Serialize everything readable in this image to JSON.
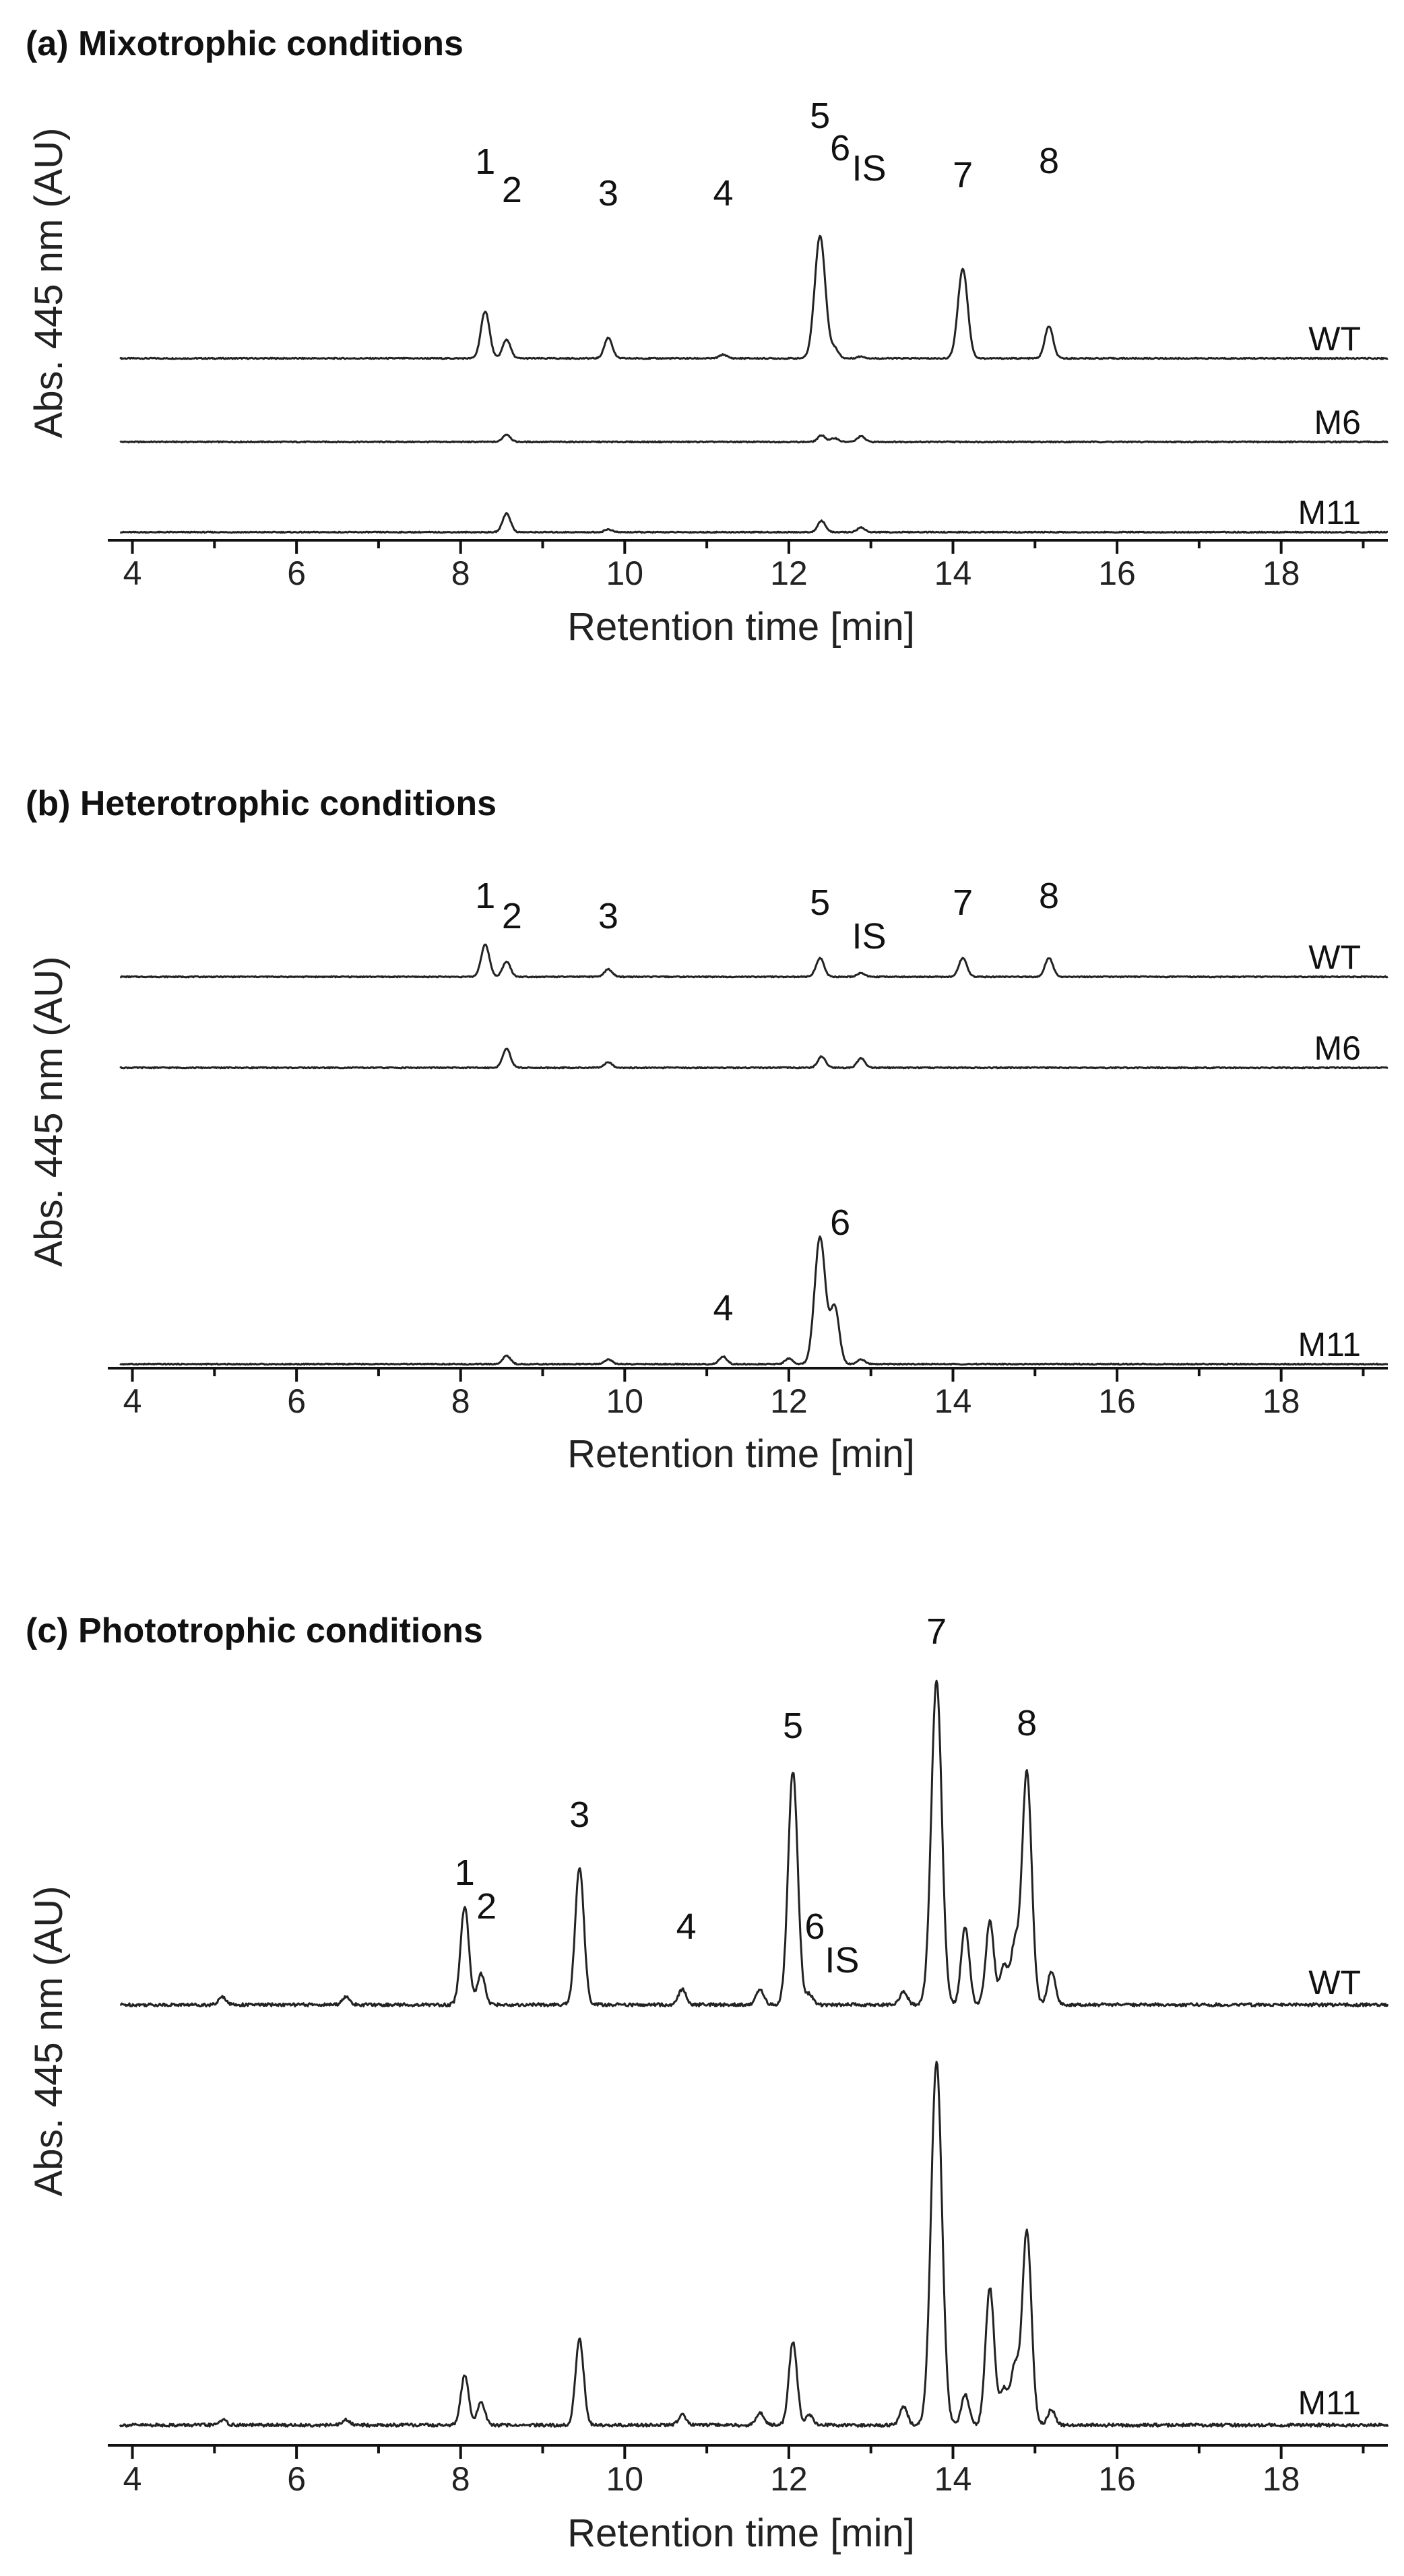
{
  "chart_data": [
    {
      "type": "line",
      "title": "(a) Mixotrophic conditions",
      "xlabel": "Retention time [min]",
      "ylabel": "Abs. 445 nm  (AU)",
      "xlim": [
        3.7,
        19.3
      ],
      "xticks": [
        "4",
        "6",
        "8",
        "10",
        "12",
        "14",
        "16",
        "18"
      ],
      "series": [
        {
          "name": "WT",
          "peaks": [
            [
              8.3,
              0.5
            ],
            [
              8.56,
              0.2
            ],
            [
              9.8,
              0.22
            ],
            [
              11.2,
              0.04
            ],
            [
              12.38,
              1.3
            ],
            [
              12.56,
              0.1
            ],
            [
              12.88,
              0.02
            ],
            [
              14.12,
              0.95
            ],
            [
              15.17,
              0.34
            ]
          ]
        },
        {
          "name": "M6",
          "peaks": [
            [
              8.56,
              0.08
            ],
            [
              12.4,
              0.07
            ],
            [
              12.56,
              0.04
            ],
            [
              12.88,
              0.06
            ]
          ]
        },
        {
          "name": "M11",
          "peaks": [
            [
              8.56,
              0.2
            ],
            [
              9.8,
              0.03
            ],
            [
              12.4,
              0.12
            ],
            [
              12.88,
              0.05
            ]
          ]
        }
      ],
      "annotations": [
        {
          "text": "1",
          "x": 8.3
        },
        {
          "text": "2",
          "x": 8.56
        },
        {
          "text": "3",
          "x": 9.8
        },
        {
          "text": "4",
          "x": 11.2
        },
        {
          "text": "5",
          "x": 12.38
        },
        {
          "text": "6",
          "x": 12.56
        },
        {
          "text": "IS",
          "x": 12.88
        },
        {
          "text": "7",
          "x": 14.12
        },
        {
          "text": "8",
          "x": 15.17
        }
      ]
    },
    {
      "type": "line",
      "title": "(b) Heterotrophic conditions",
      "xlabel": "Retention time [min]",
      "ylabel": "Abs. 445 nm  (AU)",
      "xlim": [
        3.7,
        19.3
      ],
      "xticks": [
        "4",
        "6",
        "8",
        "10",
        "12",
        "14",
        "16",
        "18"
      ],
      "series": [
        {
          "name": "WT",
          "peaks": [
            [
              8.3,
              0.34
            ],
            [
              8.56,
              0.16
            ],
            [
              9.8,
              0.08
            ],
            [
              12.38,
              0.2
            ],
            [
              12.88,
              0.04
            ],
            [
              14.12,
              0.2
            ],
            [
              15.17,
              0.2
            ]
          ]
        },
        {
          "name": "M6",
          "peaks": [
            [
              8.56,
              0.2
            ],
            [
              9.8,
              0.06
            ],
            [
              12.4,
              0.12
            ],
            [
              12.88,
              0.1
            ]
          ]
        },
        {
          "name": "M11",
          "peaks": [
            [
              8.56,
              0.09
            ],
            [
              9.8,
              0.05
            ],
            [
              11.2,
              0.08
            ],
            [
              12.0,
              0.06
            ],
            [
              12.38,
              1.35
            ],
            [
              12.56,
              0.6
            ],
            [
              12.88,
              0.05
            ]
          ]
        }
      ],
      "annotations": [
        {
          "text": "1",
          "x": 8.3
        },
        {
          "text": "2",
          "x": 8.56
        },
        {
          "text": "3",
          "x": 9.8
        },
        {
          "text": "4",
          "x": 11.2
        },
        {
          "text": "5",
          "x": 12.38
        },
        {
          "text": "6",
          "x": 12.56
        },
        {
          "text": "IS",
          "x": 12.88
        },
        {
          "text": "7",
          "x": 14.12
        },
        {
          "text": "8",
          "x": 15.17
        }
      ]
    },
    {
      "type": "line",
      "title": "(c) Phototrophic conditions",
      "xlabel": "Retention time [min]",
      "ylabel": "Abs. 445 nm  (AU)",
      "xlim": [
        3.7,
        19.3
      ],
      "xticks": [
        "4",
        "6",
        "8",
        "10",
        "12",
        "14",
        "16",
        "18"
      ],
      "series": [
        {
          "name": "WT",
          "peaks": [
            [
              5.1,
              0.03
            ],
            [
              6.6,
              0.03
            ],
            [
              8.05,
              0.38
            ],
            [
              8.25,
              0.12
            ],
            [
              9.45,
              0.53
            ],
            [
              10.7,
              0.06
            ],
            [
              11.65,
              0.06
            ],
            [
              12.05,
              0.9
            ],
            [
              12.25,
              0.04
            ],
            [
              13.4,
              0.05
            ],
            [
              13.8,
              1.25
            ],
            [
              14.15,
              0.3
            ],
            [
              14.45,
              0.32
            ],
            [
              14.62,
              0.15
            ],
            [
              14.75,
              0.22
            ],
            [
              14.9,
              0.9
            ],
            [
              15.2,
              0.13
            ]
          ]
        },
        {
          "name": "M11",
          "peaks": [
            [
              5.1,
              0.02
            ],
            [
              6.6,
              0.02
            ],
            [
              8.05,
              0.19
            ],
            [
              8.25,
              0.09
            ],
            [
              9.45,
              0.33
            ],
            [
              10.7,
              0.04
            ],
            [
              11.65,
              0.05
            ],
            [
              12.05,
              0.32
            ],
            [
              12.25,
              0.04
            ],
            [
              13.4,
              0.07
            ],
            [
              13.8,
              1.4
            ],
            [
              14.15,
              0.12
            ],
            [
              14.45,
              0.53
            ],
            [
              14.62,
              0.14
            ],
            [
              14.75,
              0.22
            ],
            [
              14.9,
              0.75
            ],
            [
              15.2,
              0.06
            ]
          ]
        }
      ],
      "annotations": [
        {
          "text": "1",
          "x": 8.05
        },
        {
          "text": "2",
          "x": 8.25
        },
        {
          "text": "3",
          "x": 9.45
        },
        {
          "text": "4",
          "x": 10.75
        },
        {
          "text": "5",
          "x": 12.05
        },
        {
          "text": "6",
          "x": 12.25
        },
        {
          "text": "IS",
          "x": 12.55
        },
        {
          "text": "7",
          "x": 13.8
        },
        {
          "text": "8",
          "x": 14.9
        }
      ]
    }
  ]
}
